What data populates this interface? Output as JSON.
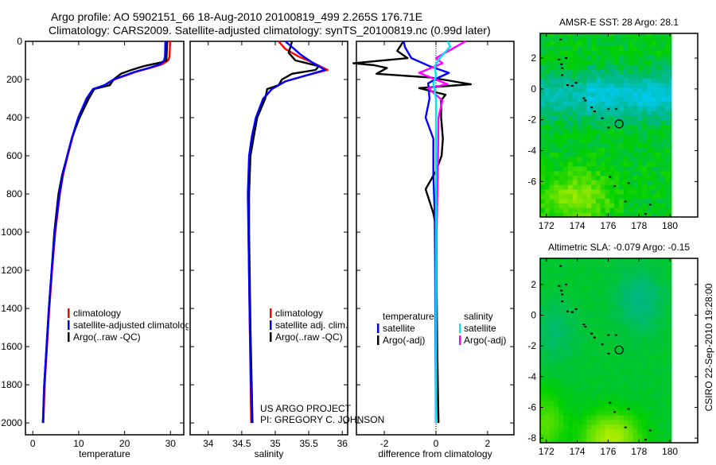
{
  "header": {
    "title_line1": "Argo profile: AO 5902151_66 18-Aug-2010 20100819_499 2.265S 176.71E",
    "title_line2": "Climatology: CARS2009. Satellite-adjusted climatology: synTS_20100819.nc (0.99d later)"
  },
  "credits": {
    "line1": "US ARGO PROJECT",
    "line2": "PI: GREGORY C. JOHNSON"
  },
  "stamp": "CSIRO 22-Sep-2010 19:28:00",
  "colors": {
    "climatology": "#ff0000",
    "satellite": "#0000ff",
    "argo": "#000000",
    "sal_satellite": "#00e5ee",
    "sal_argo": "#ff00ff"
  },
  "chart_data": [
    {
      "type": "line",
      "title": "",
      "xlabel": "temperature",
      "ylabel": "",
      "xlim": [
        -1.6,
        32.9
      ],
      "ylim": [
        2062,
        0
      ],
      "xticks": [
        "0",
        "10",
        "20",
        "30"
      ],
      "xtick_values": [
        0,
        10,
        20,
        30
      ],
      "yticks": [
        "0",
        "200",
        "400",
        "600",
        "800",
        "1000",
        "1200",
        "1400",
        "1600",
        "1800",
        "2000"
      ],
      "ytick_values": [
        0,
        200,
        400,
        600,
        800,
        1000,
        1200,
        1400,
        1600,
        1800,
        2000
      ],
      "legend": [
        "climatology",
        "satellite-adjusted climatology",
        "Argo(..raw -QC)"
      ],
      "series": [
        {
          "name": "climatology",
          "color": "#ff0000",
          "depth": [
            0,
            80,
            100,
            120,
            140,
            160,
            200,
            230,
            250,
            300,
            400,
            500,
            600,
            700,
            800,
            1000,
            1200,
            1400,
            1600,
            1800,
            2000
          ],
          "values": [
            29.9,
            29.8,
            29.5,
            28.2,
            25.5,
            22.5,
            17.8,
            15.8,
            13.2,
            11.8,
            10.0,
            8.7,
            7.6,
            6.6,
            5.9,
            4.9,
            4.2,
            3.6,
            3.1,
            2.6,
            2.3
          ]
        },
        {
          "name": "satellite-adjusted climatology",
          "color": "#0000ff",
          "depth": [
            0,
            80,
            100,
            120,
            140,
            160,
            200,
            230,
            250,
            300,
            400,
            500,
            600,
            700,
            800,
            1000,
            1200,
            1400,
            1600,
            1800,
            2000
          ],
          "values": [
            28.9,
            28.8,
            28.6,
            27.8,
            25.2,
            22.2,
            17.6,
            15.6,
            13.1,
            11.7,
            9.9,
            8.6,
            7.5,
            6.5,
            5.8,
            4.8,
            4.1,
            3.5,
            3.0,
            2.5,
            2.2
          ]
        },
        {
          "name": "Argo(..raw -QC)",
          "color": "#000000",
          "depth": [
            0,
            100,
            110,
            130,
            150,
            170,
            200,
            230,
            250,
            300,
            350,
            400,
            500,
            600,
            700,
            800,
            1000,
            1200,
            1400,
            1600,
            1800,
            2000
          ],
          "values": [
            29.3,
            29.1,
            28.0,
            24.2,
            21.5,
            19.2,
            17.6,
            16.8,
            13.4,
            12.2,
            11.2,
            10.2,
            8.6,
            7.5,
            6.4,
            5.6,
            4.7,
            4.1,
            3.5,
            3.0,
            2.5,
            2.2
          ]
        }
      ]
    },
    {
      "type": "line",
      "xlabel": "salinity",
      "xlim": [
        33.73,
        36.08
      ],
      "ylim": [
        2062,
        0
      ],
      "xticks": [
        "34",
        "34.5",
        "35",
        "35.5",
        "36"
      ],
      "xtick_values": [
        34,
        34.5,
        35,
        35.5,
        36
      ],
      "legend": [
        "climatology",
        "satellite adj. clim.",
        "Argo(..raw -QC)"
      ],
      "series": [
        {
          "name": "climatology",
          "color": "#ff0000",
          "depth": [
            0,
            40,
            80,
            110,
            150,
            180,
            210,
            250,
            300,
            400,
            500,
            600,
            800,
            1000,
            1500,
            2000
          ],
          "values": [
            35.05,
            35.15,
            35.35,
            35.55,
            35.78,
            35.45,
            35.15,
            34.95,
            34.83,
            34.72,
            34.66,
            34.62,
            34.6,
            34.6,
            34.62,
            34.64
          ]
        },
        {
          "name": "satellite adj. clim.",
          "color": "#0000ff",
          "depth": [
            0,
            30,
            70,
            110,
            150,
            180,
            210,
            250,
            300,
            400,
            500,
            600,
            800,
            1000,
            1500,
            2000
          ],
          "values": [
            35.15,
            35.25,
            35.38,
            35.55,
            35.74,
            35.45,
            35.15,
            34.95,
            34.82,
            34.71,
            34.65,
            34.61,
            34.59,
            34.6,
            34.62,
            34.65
          ]
        },
        {
          "name": "Argo(..raw -QC)",
          "color": "#000000",
          "depth": [
            0,
            60,
            100,
            130,
            150,
            170,
            200,
            230,
            250,
            300,
            400,
            500,
            600,
            800,
            1000,
            1500,
            2000
          ],
          "values": [
            35.25,
            35.2,
            35.3,
            35.65,
            35.6,
            35.25,
            35.1,
            35.05,
            34.88,
            34.85,
            34.73,
            34.68,
            34.63,
            34.61,
            34.61,
            34.63,
            34.66
          ]
        }
      ]
    },
    {
      "type": "line",
      "xlabel": "difference from climatology",
      "xlim": [
        -3.08,
        3.02
      ],
      "ylim": [
        2062,
        0
      ],
      "xticks": [
        "-2",
        "0",
        "2"
      ],
      "xtick_values": [
        -2,
        0,
        2
      ],
      "legend_groups": [
        {
          "heading": "temperature",
          "items": [
            "satellite",
            "Argo(-adj)"
          ]
        },
        {
          "heading": "salinity",
          "items": [
            "satellite",
            "Argo(-adj)"
          ]
        }
      ],
      "series": [
        {
          "name": "temperature satellite",
          "color": "#0000ff",
          "depth": [
            0,
            30,
            88,
            130,
            165,
            190,
            220,
            300,
            400,
            510,
            700,
            900,
            1200,
            1600,
            2000
          ],
          "values": [
            -1.25,
            -1.2,
            -0.95,
            -0.25,
            0.5,
            0.1,
            -0.3,
            -0.25,
            -0.4,
            -0.1,
            -0.1,
            -0.05,
            -0.03,
            -0.02,
            0
          ]
        },
        {
          "name": "temperature Argo(-adj)",
          "color": "#000000",
          "depth": [
            0,
            50,
            88,
            115,
            125,
            140,
            170,
            190,
            225,
            245,
            280,
            310,
            400,
            510,
            600,
            680,
            775,
            900,
            985,
            1200,
            1600,
            2000
          ],
          "values": [
            -1.26,
            -1.5,
            -1.1,
            -3.2,
            -2.4,
            -1.9,
            -2.3,
            -0.2,
            1.35,
            -0.65,
            0.37,
            0.2,
            0.2,
            0.27,
            0.22,
            0.0,
            -0.4,
            -0.1,
            0.02,
            0.02,
            0.05,
            0.1
          ]
        },
        {
          "name": "salinity satellite",
          "color": "#00e5ee",
          "depth": [
            0,
            28,
            88,
            130,
            180,
            220,
            300,
            600,
            1000,
            1500,
            2000
          ],
          "values": [
            0.46,
            0.55,
            0.15,
            -0.05,
            0.0,
            -0.1,
            0.0,
            0.0,
            0.0,
            -0.01,
            0.0
          ]
        },
        {
          "name": "salinity Argo(-adj)",
          "color": "#ff00ff",
          "depth": [
            0,
            28,
            88,
            115,
            165,
            225,
            245,
            310,
            400,
            600,
            1000,
            1500,
            2000
          ],
          "values": [
            1.15,
            0.78,
            0.0,
            0.25,
            -0.65,
            0.45,
            -0.3,
            0.25,
            0.1,
            0.08,
            0.03,
            0.02,
            0.01
          ]
        }
      ]
    },
    {
      "type": "heatmap",
      "title": "AMSR-E SST: 28 Argo: 28.1",
      "xlim": [
        171.6,
        181.8
      ],
      "ylim": [
        -8.3,
        3.6
      ],
      "xticks": [
        "172",
        "174",
        "176",
        "178",
        "180"
      ],
      "xtick_values": [
        172,
        174,
        176,
        178,
        180
      ],
      "yticks": [
        "2",
        "0",
        "-2",
        "-4",
        "-6"
      ],
      "ytick_values": [
        2,
        0,
        -2,
        -4,
        -6
      ],
      "profile_position": [
        176.71,
        -2.265
      ]
    },
    {
      "type": "heatmap",
      "title": "Altimetric SLA: -0.079 Argo: -0.15",
      "xlim": [
        171.6,
        181.8
      ],
      "ylim": [
        -8.3,
        3.7
      ],
      "xticks": [
        "172",
        "174",
        "176",
        "178",
        "180"
      ],
      "xtick_values": [
        172,
        174,
        176,
        178,
        180
      ],
      "yticks": [
        "2",
        "0",
        "-2",
        "-4",
        "-6",
        "-8"
      ],
      "ytick_values": [
        2,
        0,
        -2,
        -4,
        -6,
        -8
      ],
      "profile_position": [
        176.71,
        -2.265
      ]
    }
  ],
  "coastline_points": [
    [
      172.9,
      3.2
    ],
    [
      172.8,
      1.9
    ],
    [
      172.95,
      1.6
    ],
    [
      173.0,
      1.35
    ],
    [
      173.25,
      2.0
    ],
    [
      173.0,
      0.9
    ],
    [
      173.35,
      0.25
    ],
    [
      173.65,
      0.2
    ],
    [
      173.9,
      0.4
    ],
    [
      174.4,
      -0.6
    ],
    [
      174.5,
      -0.75
    ],
    [
      174.9,
      -1.2
    ],
    [
      175.1,
      -1.45
    ],
    [
      176.0,
      -1.3
    ],
    [
      176.5,
      -1.3
    ],
    [
      175.6,
      -1.9
    ],
    [
      176.0,
      -2.5
    ],
    [
      176.1,
      -5.7
    ],
    [
      176.4,
      -6.3
    ],
    [
      177.3,
      -6.1
    ],
    [
      177.1,
      -7.3
    ],
    [
      178.7,
      -7.5
    ],
    [
      178.4,
      -8.1
    ]
  ]
}
